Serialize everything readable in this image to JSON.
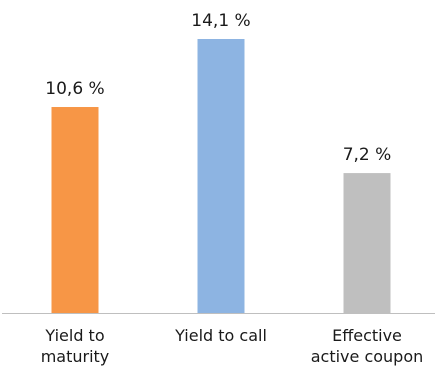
{
  "chart_data": {
    "type": "bar",
    "categories": [
      [
        "Yield to",
        "maturity"
      ],
      [
        "Yield to call"
      ],
      [
        "Effective",
        "active coupon"
      ]
    ],
    "values": [
      10.6,
      14.1,
      7.2
    ],
    "value_labels": [
      "10,6 %",
      "14,1 %",
      "7,2 %"
    ],
    "colors": [
      "#f79646",
      "#8db4e2",
      "#bfbfbf"
    ],
    "axis_line_color": "#bfbfbf",
    "ylim": [
      0,
      14.1
    ],
    "grid": false,
    "title": "",
    "xlabel": "",
    "ylabel": ""
  }
}
